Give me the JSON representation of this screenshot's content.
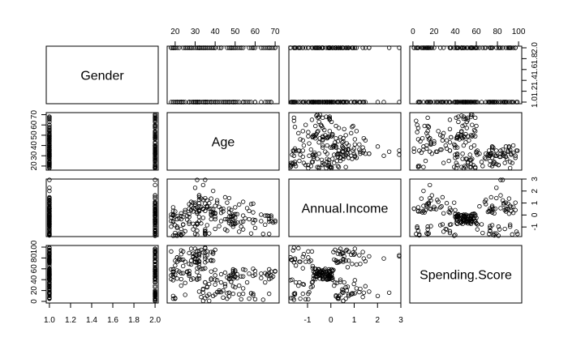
{
  "chart_data": {
    "type": "scatter",
    "kind": "pairs-matrix",
    "title": "",
    "variables": [
      {
        "name": "Gender",
        "range": [
          0.97,
          2.03
        ],
        "ticks": [
          1.0,
          1.2,
          1.4,
          1.6,
          1.8,
          2.0
        ],
        "ticklabels": [
          "1.0",
          "1.2",
          "1.4",
          "1.6",
          "1.8",
          "2.0"
        ]
      },
      {
        "name": "Age",
        "range": [
          16,
          72
        ],
        "ticks": [
          20,
          30,
          40,
          50,
          60,
          70
        ],
        "ticklabels": [
          "20",
          "30",
          "40",
          "50",
          "60",
          "70"
        ]
      },
      {
        "name": "Annual.Income",
        "range": [
          -1.8,
          3.0
        ],
        "ticks": [
          -1,
          0,
          1,
          2,
          3
        ],
        "ticklabels": [
          "-1",
          "0",
          "1",
          "2",
          "3"
        ]
      },
      {
        "name": "Spending.Score",
        "range": [
          -3,
          103
        ],
        "ticks": [
          0,
          20,
          40,
          60,
          80,
          100
        ],
        "ticklabels": [
          "0",
          "20",
          "40",
          "60",
          "80",
          "100"
        ]
      }
    ],
    "observations": [
      [
        2,
        19,
        -1.73,
        39
      ],
      [
        2,
        21,
        -1.73,
        81
      ],
      [
        1,
        20,
        -1.7,
        6
      ],
      [
        1,
        23,
        -1.7,
        77
      ],
      [
        1,
        31,
        -1.66,
        40
      ],
      [
        1,
        22,
        -1.66,
        76
      ],
      [
        1,
        35,
        -1.62,
        6
      ],
      [
        1,
        23,
        -1.62,
        94
      ],
      [
        2,
        64,
        -1.58,
        3
      ],
      [
        1,
        30,
        -1.58,
        72
      ],
      [
        2,
        67,
        -1.58,
        14
      ],
      [
        1,
        35,
        -1.58,
        99
      ],
      [
        1,
        58,
        -1.54,
        15
      ],
      [
        1,
        24,
        -1.54,
        77
      ],
      [
        2,
        37,
        -1.54,
        13
      ],
      [
        2,
        22,
        -1.54,
        79
      ],
      [
        1,
        35,
        -1.5,
        35
      ],
      [
        2,
        20,
        -1.5,
        66
      ],
      [
        2,
        52,
        -1.39,
        29
      ],
      [
        1,
        35,
        -1.39,
        98
      ],
      [
        2,
        35,
        -1.35,
        35
      ],
      [
        2,
        25,
        -1.35,
        73
      ],
      [
        1,
        46,
        -1.31,
        5
      ],
      [
        2,
        31,
        -1.31,
        73
      ],
      [
        1,
        54,
        -1.2,
        14
      ],
      [
        2,
        29,
        -1.2,
        82
      ],
      [
        1,
        45,
        -1.2,
        32
      ],
      [
        2,
        35,
        -1.2,
        61
      ],
      [
        1,
        40,
        -1.16,
        31
      ],
      [
        1,
        23,
        -1.16,
        87
      ],
      [
        2,
        60,
        -1.08,
        4
      ],
      [
        1,
        21,
        -1.08,
        73
      ],
      [
        2,
        53,
        -0.97,
        4
      ],
      [
        2,
        18,
        -0.97,
        92
      ],
      [
        1,
        49,
        -0.97,
        14
      ],
      [
        1,
        21,
        -0.97,
        81
      ],
      [
        1,
        42,
        -0.93,
        17
      ],
      [
        1,
        30,
        -0.93,
        73
      ],
      [
        1,
        36,
        -0.85,
        26
      ],
      [
        1,
        20,
        -0.85,
        75
      ],
      [
        1,
        65,
        -0.81,
        35
      ],
      [
        2,
        24,
        -0.81,
        92
      ],
      [
        2,
        48,
        -0.78,
        36
      ],
      [
        1,
        31,
        -0.78,
        61
      ],
      [
        1,
        49,
        -0.78,
        28
      ],
      [
        1,
        24,
        -0.78,
        65
      ],
      [
        1,
        50,
        -0.74,
        55
      ],
      [
        1,
        27,
        -0.74,
        47
      ],
      [
        1,
        29,
        -0.74,
        42
      ],
      [
        1,
        31,
        -0.74,
        42
      ],
      [
        1,
        49,
        -0.7,
        52
      ],
      [
        2,
        33,
        -0.7,
        60
      ],
      [
        1,
        31,
        -0.66,
        54
      ],
      [
        2,
        59,
        -0.66,
        60
      ],
      [
        1,
        50,
        -0.66,
        45
      ],
      [
        2,
        47,
        -0.66,
        41
      ],
      [
        1,
        51,
        -0.62,
        50
      ],
      [
        2,
        69,
        -0.62,
        46
      ],
      [
        1,
        27,
        -0.58,
        51
      ],
      [
        2,
        53,
        -0.58,
        46
      ],
      [
        2,
        70,
        -0.58,
        56
      ],
      [
        2,
        19,
        -0.58,
        55
      ],
      [
        1,
        67,
        -0.55,
        52
      ],
      [
        1,
        54,
        -0.55,
        59
      ],
      [
        2,
        63,
        -0.51,
        51
      ],
      [
        2,
        18,
        -0.51,
        59
      ],
      [
        1,
        43,
        -0.51,
        50
      ],
      [
        1,
        68,
        -0.51,
        48
      ],
      [
        2,
        19,
        -0.51,
        59
      ],
      [
        1,
        32,
        -0.51,
        47
      ],
      [
        2,
        70,
        -0.47,
        55
      ],
      [
        1,
        47,
        -0.47,
        42
      ],
      [
        1,
        60,
        -0.43,
        49
      ],
      [
        1,
        60,
        -0.43,
        56
      ],
      [
        2,
        59,
        -0.39,
        47
      ],
      [
        2,
        26,
        -0.39,
        54
      ],
      [
        1,
        45,
        -0.35,
        53
      ],
      [
        2,
        40,
        -0.35,
        48
      ],
      [
        1,
        23,
        -0.35,
        52
      ],
      [
        2,
        49,
        -0.35,
        42
      ],
      [
        2,
        57,
        -0.35,
        51
      ],
      [
        2,
        38,
        -0.35,
        55
      ],
      [
        2,
        67,
        -0.35,
        41
      ],
      [
        1,
        46,
        -0.35,
        44
      ],
      [
        1,
        21,
        -0.35,
        57
      ],
      [
        2,
        48,
        -0.35,
        46
      ],
      [
        1,
        55,
        -0.28,
        58
      ],
      [
        1,
        22,
        -0.28,
        55
      ],
      [
        1,
        34,
        -0.24,
        60
      ],
      [
        1,
        50,
        -0.24,
        46
      ],
      [
        1,
        68,
        -0.2,
        55
      ],
      [
        2,
        18,
        -0.2,
        41
      ],
      [
        1,
        48,
        -0.16,
        49
      ],
      [
        1,
        40,
        -0.16,
        40
      ],
      [
        1,
        32,
        -0.16,
        42
      ],
      [
        1,
        24,
        -0.16,
        52
      ],
      [
        1,
        47,
        -0.16,
        47
      ],
      [
        1,
        27,
        -0.16,
        50
      ],
      [
        2,
        48,
        -0.12,
        42
      ],
      [
        2,
        20,
        -0.12,
        49
      ],
      [
        1,
        23,
        -0.08,
        41
      ],
      [
        1,
        49,
        -0.08,
        48
      ],
      [
        2,
        67,
        -0.08,
        59
      ],
      [
        2,
        26,
        -0.08,
        55
      ],
      [
        2,
        49,
        -0.08,
        56
      ],
      [
        1,
        21,
        -0.08,
        42
      ],
      [
        1,
        66,
        -0.05,
        50
      ],
      [
        2,
        54,
        -0.05,
        46
      ],
      [
        2,
        68,
        -0.05,
        43
      ],
      [
        2,
        66,
        -0.05,
        48
      ],
      [
        2,
        65,
        -0.05,
        52
      ],
      [
        1,
        19,
        -0.05,
        54
      ],
      [
        1,
        38,
        -0.01,
        42
      ],
      [
        2,
        19,
        -0.01,
        46
      ],
      [
        1,
        18,
        0.03,
        48
      ],
      [
        1,
        19,
        0.03,
        50
      ],
      [
        1,
        63,
        0.03,
        43
      ],
      [
        1,
        49,
        0.03,
        59
      ],
      [
        2,
        51,
        0.07,
        43
      ],
      [
        2,
        50,
        0.07,
        57
      ],
      [
        2,
        27,
        0.07,
        56
      ],
      [
        1,
        38,
        0.07,
        40
      ],
      [
        1,
        40,
        0.11,
        58
      ],
      [
        2,
        39,
        0.11,
        91
      ],
      [
        1,
        23,
        0.14,
        29
      ],
      [
        1,
        31,
        0.14,
        77
      ],
      [
        2,
        43,
        0.18,
        35
      ],
      [
        2,
        40,
        0.18,
        95
      ],
      [
        2,
        59,
        0.22,
        11
      ],
      [
        2,
        38,
        0.22,
        75
      ],
      [
        2,
        47,
        0.22,
        9
      ],
      [
        2,
        39,
        0.22,
        75
      ],
      [
        1,
        25,
        0.26,
        34
      ],
      [
        1,
        31,
        0.26,
        71
      ],
      [
        2,
        20,
        0.3,
        5
      ],
      [
        1,
        29,
        0.3,
        88
      ],
      [
        1,
        44,
        0.3,
        7
      ],
      [
        2,
        32,
        0.3,
        73
      ],
      [
        2,
        19,
        0.34,
        10
      ],
      [
        1,
        35,
        0.34,
        72
      ],
      [
        1,
        57,
        0.34,
        5
      ],
      [
        2,
        32,
        0.34,
        93
      ],
      [
        1,
        28,
        0.41,
        40
      ],
      [
        1,
        32,
        0.41,
        87
      ],
      [
        2,
        25,
        0.41,
        12
      ],
      [
        2,
        28,
        0.41,
        97
      ],
      [
        2,
        48,
        0.41,
        36
      ],
      [
        1,
        32,
        0.41,
        74
      ],
      [
        1,
        34,
        0.49,
        22
      ],
      [
        2,
        34,
        0.49,
        90
      ],
      [
        2,
        43,
        0.49,
        17
      ],
      [
        2,
        39,
        0.49,
        88
      ],
      [
        1,
        44,
        0.53,
        20
      ],
      [
        1,
        38,
        0.53,
        76
      ],
      [
        1,
        47,
        0.53,
        16
      ],
      [
        1,
        27,
        0.53,
        89
      ],
      [
        2,
        37,
        0.53,
        1
      ],
      [
        1,
        30,
        0.53,
        78
      ],
      [
        2,
        34,
        0.53,
        1
      ],
      [
        1,
        30,
        0.53,
        73
      ],
      [
        1,
        56,
        0.57,
        35
      ],
      [
        1,
        29,
        0.57,
        83
      ],
      [
        2,
        19,
        0.64,
        5
      ],
      [
        1,
        31,
        0.64,
        93
      ],
      [
        2,
        50,
        0.64,
        26
      ],
      [
        1,
        36,
        0.64,
        75
      ],
      [
        2,
        42,
        0.68,
        20
      ],
      [
        1,
        33,
        0.68,
        95
      ],
      [
        1,
        36,
        0.72,
        27
      ],
      [
        2,
        32,
        0.72,
        63
      ],
      [
        2,
        40,
        0.76,
        13
      ],
      [
        2,
        28,
        0.76,
        75
      ],
      [
        2,
        36,
        0.76,
        10
      ],
      [
        2,
        36,
        0.76,
        92
      ],
      [
        1,
        52,
        0.87,
        13
      ],
      [
        1,
        30,
        0.87,
        86
      ],
      [
        2,
        58,
        0.91,
        15
      ],
      [
        2,
        27,
        0.91,
        69
      ],
      [
        2,
        59,
        0.95,
        14
      ],
      [
        2,
        35,
        0.95,
        90
      ],
      [
        1,
        37,
        0.99,
        32
      ],
      [
        1,
        32,
        0.99,
        86
      ],
      [
        2,
        46,
        1.03,
        15
      ],
      [
        1,
        29,
        1.03,
        88
      ],
      [
        1,
        41,
        1.03,
        39
      ],
      [
        2,
        30,
        1.03,
        97
      ],
      [
        1,
        54,
        1.1,
        24
      ],
      [
        2,
        28,
        1.1,
        68
      ],
      [
        1,
        41,
        1.22,
        17
      ],
      [
        1,
        36,
        1.22,
        85
      ],
      [
        1,
        34,
        1.26,
        23
      ],
      [
        1,
        32,
        1.26,
        69
      ],
      [
        2,
        33,
        1.37,
        8
      ],
      [
        1,
        38,
        1.37,
        91
      ],
      [
        1,
        47,
        1.41,
        16
      ],
      [
        1,
        35,
        1.41,
        79
      ],
      [
        1,
        45,
        1.48,
        28
      ],
      [
        2,
        32,
        1.48,
        74
      ],
      [
        2,
        32,
        1.64,
        18
      ],
      [
        2,
        32,
        1.64,
        83
      ],
      [
        1,
        39,
        2.01,
        10
      ],
      [
        1,
        30,
        2.27,
        79
      ],
      [
        2,
        34,
        2.5,
        16
      ],
      [
        1,
        35,
        2.93,
        83
      ],
      [
        2,
        31,
        2.93,
        85
      ]
    ]
  }
}
